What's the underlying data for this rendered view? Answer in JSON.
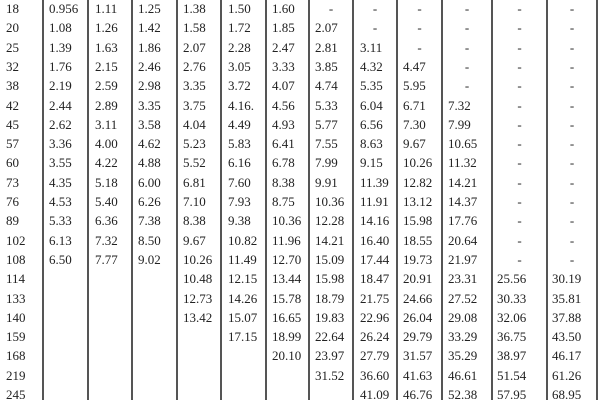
{
  "table": {
    "rows": [
      [
        "18",
        "0.956",
        "1.11",
        "1.25",
        "1.38",
        "1.50",
        "1.60",
        "-",
        "-",
        "-",
        "-",
        "-",
        "-"
      ],
      [
        "20",
        "1.08",
        "1.26",
        "1.42",
        "1.58",
        "1.72",
        "1.85",
        "2.07",
        "-",
        "-",
        "-",
        "-",
        "-"
      ],
      [
        "25",
        "1.39",
        "1.63",
        "1.86",
        "2.07",
        "2.28",
        "2.47",
        "2.81",
        "3.11",
        "-",
        "-",
        "-",
        "-"
      ],
      [
        "32",
        "1.76",
        "2.15",
        "2.46",
        "2.76",
        "3.05",
        "3.33",
        "3.85",
        "4.32",
        "4.47",
        "-",
        "-",
        "-"
      ],
      [
        "38",
        "2.19",
        "2.59",
        "2.98",
        "3.35",
        "3.72",
        "4.07",
        "4.74",
        "5.35",
        "5.95",
        "-",
        "-",
        "-"
      ],
      [
        "42",
        "2.44",
        "2.89",
        "3.35",
        "3.75",
        "4.16.",
        "4.56",
        "5.33",
        "6.04",
        "6.71",
        "7.32",
        "-",
        "-"
      ],
      [
        "45",
        "2.62",
        "3.11",
        "3.58",
        "4.04",
        "4.49",
        "4.93",
        "5.77",
        "6.56",
        "7.30",
        "7.99",
        "-",
        "-"
      ],
      [
        "57",
        "3.36",
        "4.00",
        "4.62",
        "5.23",
        "5.83",
        "6.41",
        "7.55",
        "8.63",
        "9.67",
        "10.65",
        "-",
        "-"
      ],
      [
        "60",
        "3.55",
        "4.22",
        "4.88",
        "5.52",
        "6.16",
        "6.78",
        "7.99",
        "9.15",
        "10.26",
        "11.32",
        "-",
        "-"
      ],
      [
        "73",
        "4.35",
        "5.18",
        "6.00",
        "6.81",
        "7.60",
        "8.38",
        "9.91",
        "11.39",
        "12.82",
        "14.21",
        "-",
        "-"
      ],
      [
        "76",
        "4.53",
        "5.40",
        "6.26",
        "7.10",
        "7.93",
        "8.75",
        "10.36",
        "11.91",
        "13.12",
        "14.37",
        "-",
        "-"
      ],
      [
        "89",
        "5.33",
        "6.36",
        "7.38",
        "8.38",
        "9.38",
        "10.36",
        "12.28",
        "14.16",
        "15.98",
        "17.76",
        "-",
        "-"
      ],
      [
        "102",
        "6.13",
        "7.32",
        "8.50",
        "9.67",
        "10.82",
        "11.96",
        "14.21",
        "16.40",
        "18.55",
        "20.64",
        "-",
        "-"
      ],
      [
        "108",
        "6.50",
        "7.77",
        "9.02",
        "10.26",
        "11.49",
        "12.70",
        "15.09",
        "17.44",
        "19.73",
        "21.97",
        "-",
        "-"
      ],
      [
        "114",
        "",
        "",
        "",
        "10.48",
        "12.15",
        "13.44",
        "15.98",
        "18.47",
        "20.91",
        "23.31",
        "25.56",
        "30.19"
      ],
      [
        "133",
        "",
        "",
        "",
        "12.73",
        "14.26",
        "15.78",
        "18.79",
        "21.75",
        "24.66",
        "27.52",
        "30.33",
        "35.81"
      ],
      [
        "140",
        "",
        "",
        "",
        "13.42",
        "15.07",
        "16.65",
        "19.83",
        "22.96",
        "26.04",
        "29.08",
        "32.06",
        "37.88"
      ],
      [
        "159",
        "",
        "",
        "",
        "",
        "17.15",
        "18.99",
        "22.64",
        "26.24",
        "29.79",
        "33.29",
        "36.75",
        "43.50"
      ],
      [
        "168",
        "",
        "",
        "",
        "",
        "",
        "20.10",
        "23.97",
        "27.79",
        "31.57",
        "35.29",
        "38.97",
        "46.17"
      ],
      [
        "219",
        "",
        "",
        "",
        "",
        "",
        "",
        "31.52",
        "36.60",
        "41.63",
        "46.61",
        "51.54",
        "61.26"
      ],
      [
        "245",
        "",
        "",
        "",
        "",
        "",
        "",
        "",
        "41.09",
        "46.76",
        "52.38",
        "57.95",
        "68.95"
      ]
    ]
  }
}
